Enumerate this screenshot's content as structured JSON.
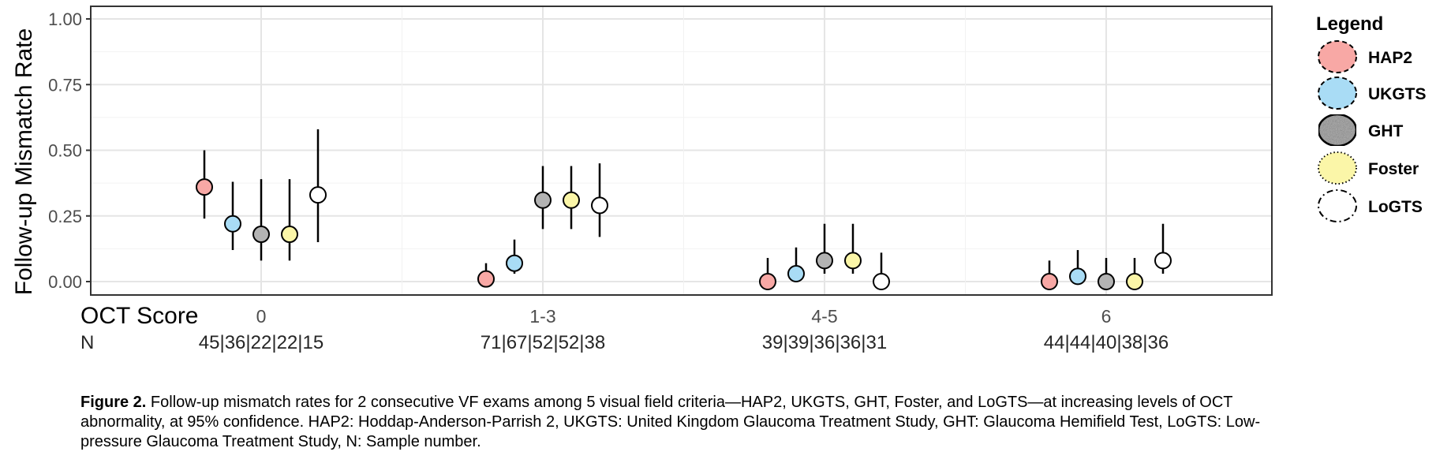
{
  "chart_data": {
    "type": "scatter",
    "title": "",
    "ylabel": "Follow-up Mismatch Rate",
    "xlabel": "OCT Score",
    "ylim": [
      0,
      1
    ],
    "yticks": [
      "0.00",
      "0.25",
      "0.50",
      "0.75",
      "1.00"
    ],
    "categories": [
      "0",
      "1-3",
      "4-5",
      "6"
    ],
    "n_label": "N",
    "n_values": [
      "45|36|22|22|15",
      "71|67|52|52|38",
      "39|39|36|36|31",
      "44|44|40|38|36"
    ],
    "grid": true,
    "legend_placement": "right",
    "legend_title": "Legend",
    "series": [
      {
        "name": "HAP2",
        "color": "#f8a8a5",
        "border": "dashed",
        "values": [
          0.36,
          0.01,
          0.0,
          0.0
        ],
        "lower": [
          0.24,
          0.0,
          0.0,
          0.0
        ],
        "upper": [
          0.5,
          0.07,
          0.09,
          0.08
        ]
      },
      {
        "name": "UKGTS",
        "color": "#a9dcf5",
        "border": "dashed",
        "values": [
          0.22,
          0.07,
          0.03,
          0.02
        ],
        "lower": [
          0.12,
          0.03,
          0.0,
          0.0
        ],
        "upper": [
          0.38,
          0.16,
          0.13,
          0.12
        ]
      },
      {
        "name": "GHT",
        "color": "#b3b3b3",
        "border": "solid",
        "values": [
          0.18,
          0.31,
          0.08,
          0.0
        ],
        "lower": [
          0.08,
          0.2,
          0.03,
          0.0
        ],
        "upper": [
          0.39,
          0.44,
          0.22,
          0.09
        ]
      },
      {
        "name": "Foster",
        "color": "#fbf6a8",
        "border": "dotted",
        "values": [
          0.18,
          0.31,
          0.08,
          0.0
        ],
        "lower": [
          0.08,
          0.2,
          0.03,
          0.0
        ],
        "upper": [
          0.39,
          0.44,
          0.22,
          0.09
        ]
      },
      {
        "name": "LoGTS",
        "color": "#ffffff",
        "border": "dashdot",
        "values": [
          0.33,
          0.29,
          0.0,
          0.08
        ],
        "lower": [
          0.15,
          0.17,
          0.0,
          0.03
        ],
        "upper": [
          0.58,
          0.45,
          0.11,
          0.22
        ]
      }
    ]
  },
  "caption": {
    "label": "Figure 2.",
    "text": " Follow-up mismatch rates for 2 consecutive VF exams among 5 visual field criteria—HAP2, UKGTS, GHT, Foster, and LoGTS—at increasing levels of OCT abnormality, at 95% confidence. HAP2: Hoddap-Anderson-Parrish 2, UKGTS: United Kingdom Glaucoma Treatment Study, GHT: Glaucoma Hemifield Test, LoGTS: Low-pressure Glaucoma Treatment Study, N: Sample number."
  }
}
